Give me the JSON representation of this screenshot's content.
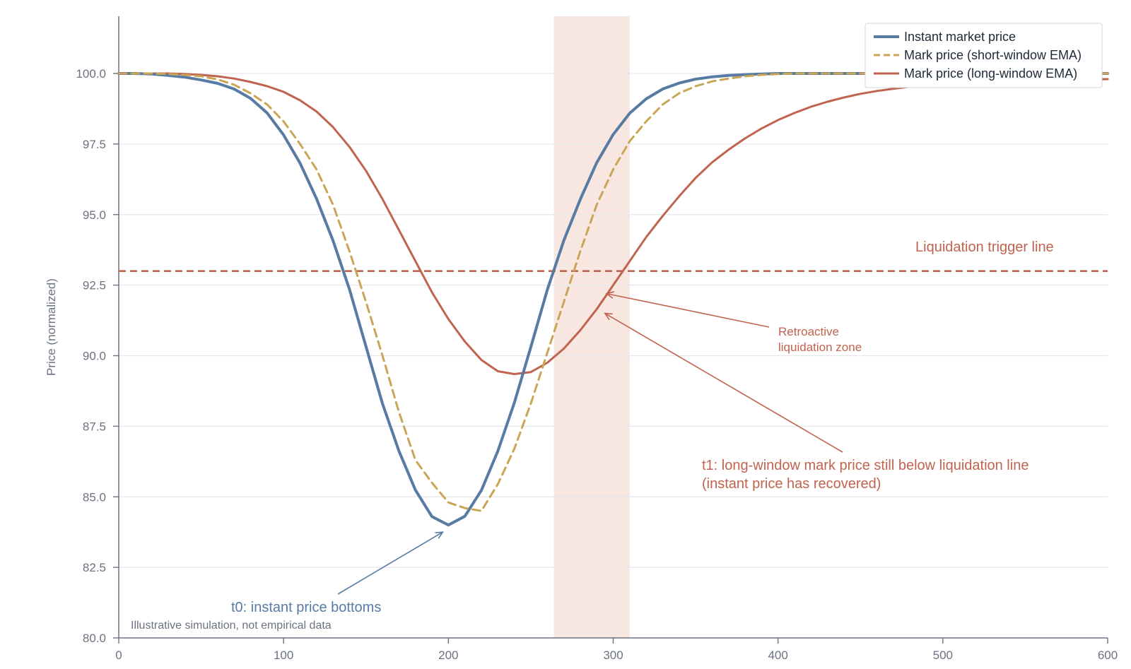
{
  "chart_data": {
    "type": "line",
    "ylabel": "Price (normalized)",
    "xlim": [
      0,
      600
    ],
    "ylim": [
      80,
      102
    ],
    "x_ticks": [
      0,
      100,
      200,
      300,
      400,
      500,
      600
    ],
    "y_ticks": [
      80.0,
      82.5,
      85.0,
      87.5,
      90.0,
      92.5,
      95.0,
      97.5,
      100.0
    ],
    "grid": "horizontal",
    "legend_position": "top-right",
    "x": [
      0,
      10,
      20,
      30,
      40,
      50,
      60,
      70,
      80,
      90,
      100,
      110,
      120,
      130,
      140,
      150,
      160,
      170,
      180,
      190,
      200,
      210,
      220,
      230,
      240,
      250,
      260,
      270,
      280,
      290,
      300,
      310,
      320,
      330,
      340,
      350,
      360,
      370,
      380,
      390,
      400,
      410,
      420,
      430,
      440,
      450,
      460,
      470,
      480,
      490,
      500,
      510,
      520,
      530,
      540,
      550,
      560,
      570,
      580,
      590,
      600
    ],
    "series": [
      {
        "name": "Instant market price",
        "color": "#587ba3",
        "dash": "solid",
        "values": [
          100.0,
          100.0,
          99.98,
          99.93,
          99.87,
          99.77,
          99.65,
          99.45,
          99.12,
          98.6,
          97.82,
          96.82,
          95.56,
          94.08,
          92.35,
          90.32,
          88.3,
          86.62,
          85.24,
          84.3,
          84.0,
          84.31,
          85.23,
          86.62,
          88.33,
          90.3,
          92.33,
          94.08,
          95.54,
          96.84,
          97.84,
          98.59,
          99.1,
          99.45,
          99.66,
          99.8,
          99.88,
          99.93,
          99.96,
          99.98,
          100.0,
          100.0,
          100.0,
          100.0,
          100.0,
          100.0,
          100.0,
          100.0,
          100.0,
          100.0,
          100.0,
          100.0,
          100.0,
          100.0,
          100.0,
          100.0,
          100.0,
          100.0,
          100.0,
          100.0,
          100.0
        ]
      },
      {
        "name": "Mark price (short-window EMA)",
        "color": "#c9a555",
        "dash": "dashed",
        "values": [
          100.0,
          100.0,
          100.0,
          99.98,
          99.95,
          99.9,
          99.79,
          99.6,
          99.3,
          98.9,
          98.3,
          97.5,
          96.6,
          95.35,
          93.7,
          91.9,
          90.0,
          88.0,
          86.3,
          85.5,
          84.8,
          84.6,
          84.5,
          85.45,
          86.7,
          88.3,
          90.1,
          91.9,
          93.7,
          95.35,
          96.6,
          97.6,
          98.3,
          98.9,
          99.3,
          99.55,
          99.72,
          99.82,
          99.9,
          99.95,
          99.98,
          100.0,
          100.0,
          100.0,
          100.0,
          100.0,
          100.0,
          100.0,
          100.0,
          100.0,
          100.0,
          100.0,
          100.0,
          100.0,
          100.0,
          100.0,
          100.0,
          100.0,
          100.0,
          100.0,
          100.0
        ]
      },
      {
        "name": "Mark price (long-window EMA)",
        "color": "#c0634f",
        "dash": "solid",
        "values": [
          100.0,
          100.0,
          100.0,
          100.0,
          99.98,
          99.95,
          99.9,
          99.82,
          99.7,
          99.55,
          99.35,
          99.05,
          98.65,
          98.1,
          97.4,
          96.55,
          95.55,
          94.45,
          93.35,
          92.25,
          91.3,
          90.5,
          89.85,
          89.45,
          89.35,
          89.42,
          89.75,
          90.25,
          90.9,
          91.65,
          92.5,
          93.35,
          94.2,
          94.95,
          95.65,
          96.3,
          96.85,
          97.3,
          97.7,
          98.05,
          98.35,
          98.6,
          98.82,
          99.0,
          99.15,
          99.28,
          99.38,
          99.46,
          99.53,
          99.58,
          99.62,
          99.65,
          99.68,
          99.7,
          99.72,
          99.74,
          99.76,
          99.77,
          99.78,
          99.79,
          99.8
        ]
      }
    ],
    "reference_line": {
      "y": 93.0,
      "label": "Liquidation trigger line",
      "color": "#c0634f"
    },
    "shaded_band": {
      "x0": 264,
      "x1": 310,
      "color": "#f5ddd7"
    },
    "annotations": [
      {
        "text": "Retroactive",
        "text2": "liquidation zone",
        "target": [
          296,
          92.2
        ]
      },
      {
        "text": "t1: long-window mark price still below liquidation line",
        "text2": "(instant price has recovered)",
        "target": [
          295,
          91.5
        ]
      },
      {
        "text": "t0: instant price bottoms",
        "target": [
          200,
          83.9
        ]
      }
    ],
    "note": "Illustrative simulation, not empirical data"
  }
}
